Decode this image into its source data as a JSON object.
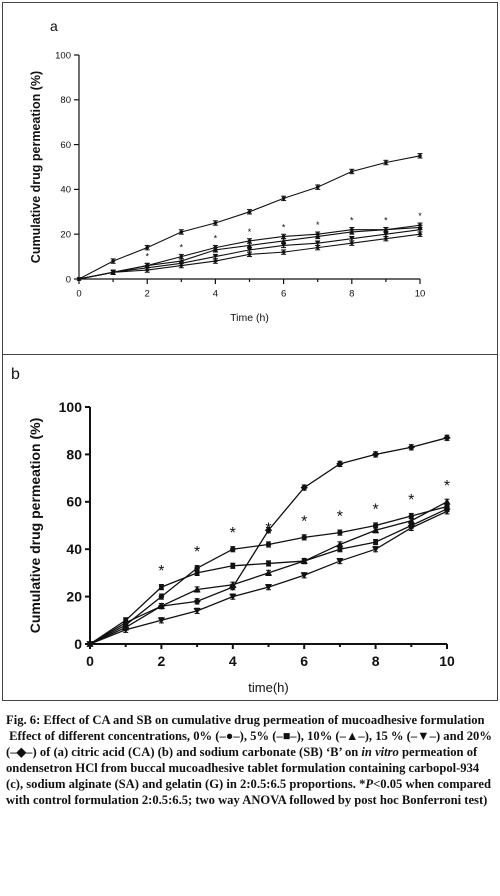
{
  "charts": [
    {
      "panel_label": "a",
      "xlabel": "Time (h)",
      "ylabel": "Cumulative drug permeation (%)"
    },
    {
      "panel_label": "b",
      "xlabel": "time(h)",
      "ylabel": "Cumulative drug permeation (%)"
    }
  ],
  "caption": {
    "title": "Fig. 6: Effect of CA and SB on cumulative drug permeation of mucoadhesive formulation",
    "body_parts": [
      "Effect of different concentrations, 0% (",
      "), 5% (",
      "), 10% (",
      "), 15 % (",
      ") and 20% (",
      ") of (a) citric acid (CA) (b) and sodium carbonate (SB) ‘B’ on ",
      " permeation of ondensetron HCl from buccal mucoadhesive tablet formulation containing carbopol-934 (c), sodium alginate (SA) and gelatin (G) in 2:0.5:6.5 proportions. *",
      "<0.05 when compared with control formulation 2:0.5:6.5; two way ANOVA followed by post hoc Bonferroni test)"
    ],
    "legend_glyphs": [
      "–●–",
      "–■–",
      "–▲–",
      "–▼–",
      "–◆–"
    ],
    "in_vitro": "in vitro",
    "p": "P"
  },
  "chart_data": [
    {
      "type": "line",
      "x": [
        0,
        1,
        2,
        3,
        4,
        5,
        6,
        7,
        8,
        9,
        10
      ],
      "xlim": [
        0,
        10
      ],
      "ylim": [
        0,
        100
      ],
      "xticks": [
        "0",
        "2",
        "4",
        "6",
        "8",
        "10"
      ],
      "yticks": [
        "0",
        "20",
        "40",
        "60",
        "80",
        "100"
      ],
      "significance_marker": "*",
      "significant_x": [
        2,
        3,
        4,
        5,
        6,
        7,
        8,
        9,
        10
      ],
      "series": [
        {
          "marker": "circle",
          "values": [
            0,
            8,
            14,
            21,
            25,
            30,
            36,
            41,
            48,
            52,
            55
          ]
        },
        {
          "marker": "square",
          "values": [
            0,
            3,
            6,
            10,
            14,
            17,
            19,
            20,
            22,
            22,
            24
          ]
        },
        {
          "marker": "triangle-up",
          "values": [
            0,
            3,
            6,
            8,
            13,
            15,
            17,
            19,
            21,
            22,
            23
          ]
        },
        {
          "marker": "triangle-down",
          "values": [
            0,
            3,
            5,
            7,
            10,
            13,
            15,
            16,
            18,
            20,
            22
          ]
        },
        {
          "marker": "diamond",
          "values": [
            0,
            3,
            4,
            6,
            8,
            11,
            12,
            14,
            16,
            18,
            20
          ]
        }
      ]
    },
    {
      "type": "line",
      "x": [
        0,
        1,
        2,
        3,
        4,
        5,
        6,
        7,
        8,
        9,
        10
      ],
      "xlim": [
        0,
        10
      ],
      "ylim": [
        0,
        100
      ],
      "xticks": [
        "0",
        "2",
        "4",
        "6",
        "8",
        "10"
      ],
      "yticks": [
        "0",
        "20",
        "40",
        "60",
        "80",
        "100"
      ],
      "significance_marker": "*",
      "significant_x": [
        2,
        3,
        4,
        5,
        6,
        7,
        8,
        9,
        10
      ],
      "series": [
        {
          "marker": "circle",
          "values": [
            0,
            8,
            20,
            32,
            40,
            42,
            45,
            47,
            50,
            54,
            58
          ]
        },
        {
          "marker": "square",
          "values": [
            0,
            10,
            24,
            30,
            33,
            34,
            35,
            40,
            43,
            50,
            57
          ]
        },
        {
          "marker": "triangle-up",
          "values": [
            0,
            7,
            16,
            23,
            25,
            30,
            35,
            42,
            48,
            52,
            60
          ]
        },
        {
          "marker": "triangle-down",
          "values": [
            0,
            6,
            10,
            14,
            20,
            24,
            29,
            35,
            40,
            49,
            56
          ]
        },
        {
          "marker": "diamond",
          "values": [
            0,
            9,
            16,
            18,
            24,
            48,
            66,
            76,
            80,
            83,
            87
          ]
        }
      ]
    }
  ]
}
